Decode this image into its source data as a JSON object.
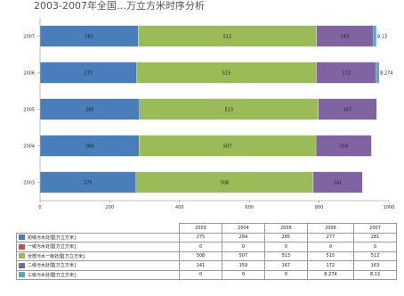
{
  "title": "2003-2007年全国…万立方米时序分析",
  "chart_data": {
    "type": "bar",
    "orientation": "horizontal",
    "stacked": true,
    "categories": [
      "2007",
      "2006",
      "2005",
      "2004",
      "2003"
    ],
    "series": [
      {
        "name": "初级污水处理[万立方米]",
        "color": "#4a7ebb",
        "values": [
          281,
          277,
          285,
          284,
          275
        ]
      },
      {
        "name": "一级污水处理[万立方米]",
        "color": "#c0504d",
        "values": [
          0,
          0,
          0,
          0,
          0
        ]
      },
      {
        "name": "全部污水一级处理[万立方米]",
        "color": "#9bbb59",
        "values": [
          512,
          515,
          513,
          507,
          508
        ]
      },
      {
        "name": "二级污水处理[万立方米]",
        "color": "#8064a2",
        "values": [
          163,
          172,
          167,
          159,
          141
        ]
      },
      {
        "name": "三级污水处理[万立方米]",
        "color": "#4bacc6",
        "values": [
          8.13,
          8.274,
          0,
          0,
          0
        ]
      }
    ],
    "xlim": [
      0,
      1000
    ],
    "xticks": [
      0,
      200,
      400,
      600,
      800,
      1000
    ],
    "grid": false,
    "legend": "table"
  },
  "table": {
    "years": [
      "2003",
      "2004",
      "2005",
      "2006",
      "2007"
    ],
    "rows": [
      {
        "name": "初级污水处理[万立方米]",
        "color": "#4a7ebb",
        "values": [
          "275",
          "284",
          "285",
          "277",
          "281"
        ]
      },
      {
        "name": "一级污水处理[万立方米]",
        "color": "#c0504d",
        "values": [
          "0",
          "0",
          "0",
          "0",
          "0"
        ]
      },
      {
        "name": "全部污水一级处理[万立方米]",
        "color": "#9bbb59",
        "values": [
          "508",
          "507",
          "513",
          "515",
          "512"
        ]
      },
      {
        "name": "二级污水处理[万立方米]",
        "color": "#8064a2",
        "values": [
          "141",
          "159",
          "167",
          "172",
          "163"
        ]
      },
      {
        "name": "三级污水处理[万立方米]",
        "color": "#4bacc6",
        "values": [
          "0",
          "0",
          "0",
          "8.274",
          "8.13"
        ]
      }
    ]
  }
}
